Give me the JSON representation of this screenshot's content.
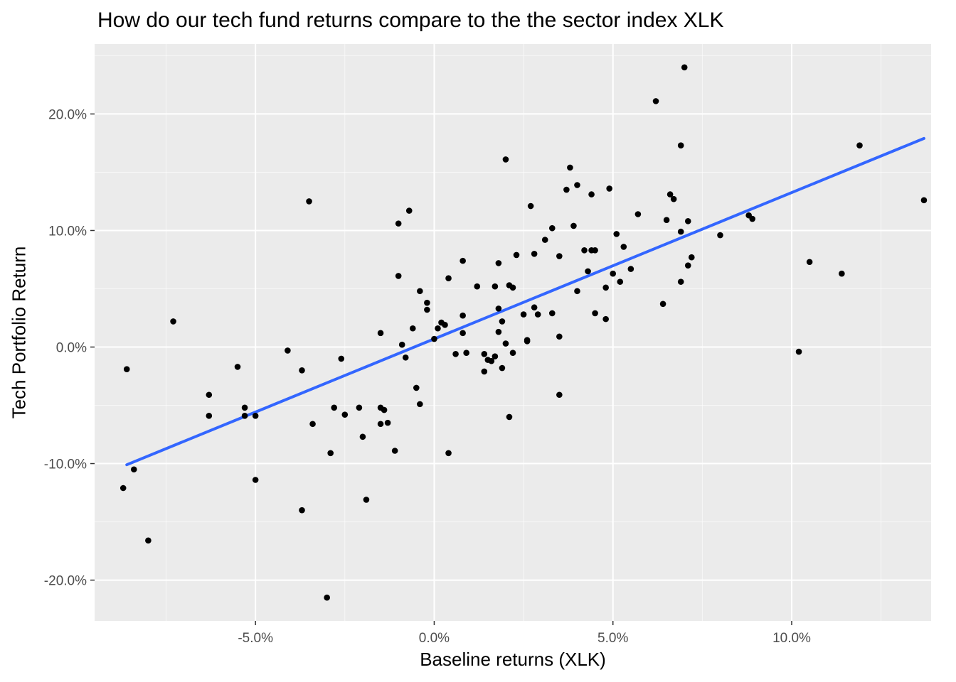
{
  "chart_data": {
    "type": "scatter",
    "title": "How do our tech fund returns compare to the the sector index XLK",
    "xlabel": "Baseline returns (XLK)",
    "ylabel": "Tech Portfolio Return",
    "xlim": [
      -9.5,
      13.9
    ],
    "ylim": [
      -23.5,
      26.0
    ],
    "x_ticks": [
      -5,
      0,
      5,
      10
    ],
    "x_tick_labels": [
      "-5.0%",
      "0.0%",
      "5.0%",
      "10.0%"
    ],
    "y_ticks": [
      -20,
      -10,
      0,
      10,
      20
    ],
    "y_tick_labels": [
      "-20.0%",
      "-10.0%",
      "0.0%",
      "10.0%",
      "20.0%"
    ],
    "grid": true,
    "colors": {
      "panel_background": "#EBEBEB",
      "grid": "#FFFFFF",
      "points": "#000000",
      "trend_line": "#3366FF",
      "tick_labels": "#4D4D4D"
    },
    "trend_line": {
      "name": "linear fit",
      "x": [
        -8.6,
        13.7
      ],
      "y": [
        -10.1,
        17.9
      ]
    },
    "series": [
      {
        "points": [
          [
            -8.7,
            -12.1
          ],
          [
            -8.6,
            -1.9
          ],
          [
            -8.4,
            -10.5
          ],
          [
            -8.0,
            -16.6
          ],
          [
            -7.3,
            2.2
          ],
          [
            -6.3,
            -4.1
          ],
          [
            -6.3,
            -5.9
          ],
          [
            -5.5,
            -1.7
          ],
          [
            -5.3,
            -5.2
          ],
          [
            -5.3,
            -5.9
          ],
          [
            -5.0,
            -5.9
          ],
          [
            -5.0,
            -11.4
          ],
          [
            -4.1,
            -0.3
          ],
          [
            -3.7,
            -2.0
          ],
          [
            -3.7,
            -14.0
          ],
          [
            -3.5,
            12.5
          ],
          [
            -3.4,
            -6.6
          ],
          [
            -3.0,
            -21.5
          ],
          [
            -2.9,
            -9.1
          ],
          [
            -2.8,
            -5.2
          ],
          [
            -2.6,
            -1.0
          ],
          [
            -2.5,
            -5.8
          ],
          [
            -2.1,
            -5.2
          ],
          [
            -2.0,
            -7.7
          ],
          [
            -1.9,
            -13.1
          ],
          [
            -1.5,
            1.2
          ],
          [
            -1.5,
            -5.2
          ],
          [
            -1.5,
            -6.6
          ],
          [
            -1.4,
            -5.4
          ],
          [
            -1.3,
            -6.5
          ],
          [
            -1.1,
            -8.9
          ],
          [
            -1.0,
            10.6
          ],
          [
            -1.0,
            6.1
          ],
          [
            -0.9,
            0.2
          ],
          [
            -0.8,
            -0.9
          ],
          [
            -0.7,
            11.7
          ],
          [
            -0.6,
            1.6
          ],
          [
            -0.5,
            -3.5
          ],
          [
            -0.4,
            -4.9
          ],
          [
            -0.4,
            4.8
          ],
          [
            -0.2,
            3.8
          ],
          [
            -0.2,
            3.2
          ],
          [
            0.0,
            0.7
          ],
          [
            0.1,
            1.6
          ],
          [
            0.2,
            2.1
          ],
          [
            0.3,
            1.9
          ],
          [
            0.4,
            5.9
          ],
          [
            0.4,
            -9.1
          ],
          [
            0.6,
            -0.6
          ],
          [
            0.8,
            7.4
          ],
          [
            0.8,
            2.7
          ],
          [
            0.8,
            1.2
          ],
          [
            0.9,
            -0.5
          ],
          [
            1.2,
            5.2
          ],
          [
            1.4,
            -0.6
          ],
          [
            1.4,
            -2.1
          ],
          [
            1.5,
            -1.1
          ],
          [
            1.6,
            -1.2
          ],
          [
            1.7,
            -0.8
          ],
          [
            1.7,
            5.2
          ],
          [
            1.8,
            1.3
          ],
          [
            1.8,
            3.3
          ],
          [
            1.8,
            7.2
          ],
          [
            1.9,
            2.2
          ],
          [
            1.9,
            -1.8
          ],
          [
            2.0,
            16.1
          ],
          [
            2.0,
            0.3
          ],
          [
            2.1,
            5.3
          ],
          [
            2.1,
            -6.0
          ],
          [
            2.2,
            -0.5
          ],
          [
            2.2,
            5.1
          ],
          [
            2.3,
            7.9
          ],
          [
            2.5,
            2.8
          ],
          [
            2.6,
            0.5
          ],
          [
            2.6,
            0.6
          ],
          [
            2.7,
            12.1
          ],
          [
            2.8,
            3.4
          ],
          [
            2.8,
            8.0
          ],
          [
            2.9,
            2.8
          ],
          [
            3.1,
            9.2
          ],
          [
            3.3,
            10.2
          ],
          [
            3.3,
            2.9
          ],
          [
            3.5,
            0.9
          ],
          [
            3.5,
            7.8
          ],
          [
            3.5,
            -4.1
          ],
          [
            3.7,
            13.5
          ],
          [
            3.8,
            15.4
          ],
          [
            3.9,
            10.4
          ],
          [
            4.0,
            13.9
          ],
          [
            4.0,
            4.8
          ],
          [
            4.2,
            8.3
          ],
          [
            4.3,
            6.5
          ],
          [
            4.4,
            8.3
          ],
          [
            4.4,
            13.1
          ],
          [
            4.5,
            8.3
          ],
          [
            4.5,
            2.9
          ],
          [
            4.8,
            5.1
          ],
          [
            4.8,
            2.4
          ],
          [
            4.9,
            13.6
          ],
          [
            5.0,
            6.3
          ],
          [
            5.1,
            9.7
          ],
          [
            5.2,
            5.6
          ],
          [
            5.3,
            8.6
          ],
          [
            5.5,
            6.7
          ],
          [
            5.7,
            11.4
          ],
          [
            6.2,
            21.1
          ],
          [
            6.4,
            3.7
          ],
          [
            6.5,
            10.9
          ],
          [
            6.6,
            13.1
          ],
          [
            6.7,
            12.7
          ],
          [
            6.9,
            5.6
          ],
          [
            6.9,
            17.3
          ],
          [
            6.9,
            9.9
          ],
          [
            7.0,
            24.0
          ],
          [
            7.1,
            10.8
          ],
          [
            7.1,
            7.0
          ],
          [
            7.2,
            7.7
          ],
          [
            8.0,
            9.6
          ],
          [
            8.8,
            11.3
          ],
          [
            8.9,
            11.0
          ],
          [
            10.2,
            -0.4
          ],
          [
            10.5,
            7.3
          ],
          [
            11.4,
            6.3
          ],
          [
            11.9,
            17.3
          ],
          [
            13.7,
            12.6
          ]
        ]
      }
    ]
  }
}
